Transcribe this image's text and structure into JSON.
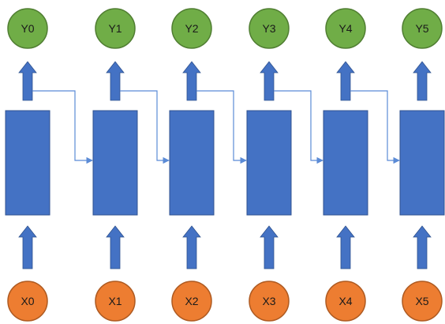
{
  "colors": {
    "output_fill": "#70ad47",
    "output_stroke": "#507e32",
    "input_fill": "#ed7d31",
    "input_stroke": "#ae5a21",
    "cell_fill": "#4472c4",
    "cell_stroke": "#2f528f",
    "arrow_fill": "#4472c4",
    "connector": "#5b8bd6"
  },
  "icons": {
    "cell": "rectangle",
    "up_arrow": "block-arrow-up",
    "connector": "elbow-arrow-right"
  },
  "steps": [
    {
      "input": "X0",
      "output": "Y0"
    },
    {
      "input": "X1",
      "output": "Y1"
    },
    {
      "input": "X2",
      "output": "Y2"
    },
    {
      "input": "X3",
      "output": "Y3"
    },
    {
      "input": "X4",
      "output": "Y4"
    },
    {
      "input": "X5",
      "output": "Y5"
    }
  ]
}
